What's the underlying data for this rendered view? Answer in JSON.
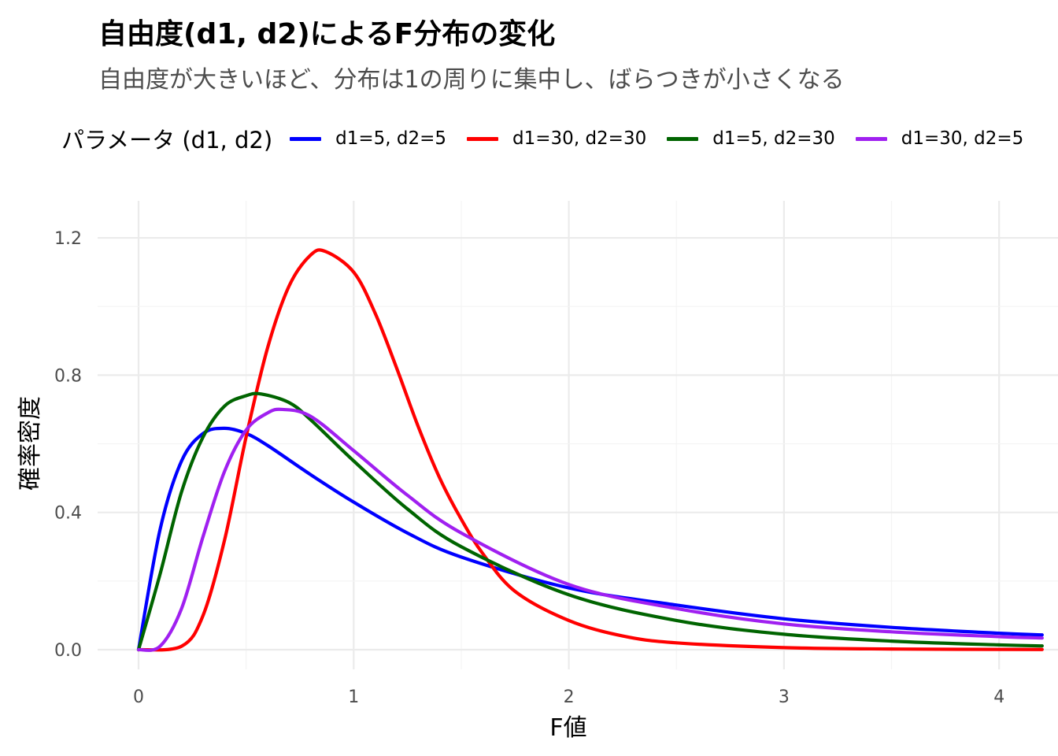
{
  "chart_data": {
    "type": "line",
    "title": "自由度(d1, d2)によるF分布の変化",
    "subtitle": "自由度が大きいほど、分布は1の周りに集中し、ばらつきが小さくなる",
    "xlabel": "F値",
    "ylabel": "確率密度",
    "xlim": [
      0,
      4.2
    ],
    "ylim": [
      0,
      1.2
    ],
    "x_ticks": [
      "0",
      "1",
      "2",
      "3",
      "4"
    ],
    "y_ticks": [
      "0.0",
      "0.4",
      "0.8",
      "1.2"
    ],
    "grid": true,
    "legend": {
      "title": "パラメータ (d1, d2)",
      "position": "top"
    },
    "series": [
      {
        "name": "d1=5, d2=5",
        "color": "#0000FF",
        "x": [
          0,
          0.1,
          0.2,
          0.3,
          0.4,
          0.5,
          0.6,
          0.8,
          1.0,
          1.25,
          1.5,
          2.0,
          2.5,
          3.0,
          3.5,
          4.0,
          4.2
        ],
        "y": [
          0,
          0.35,
          0.55,
          0.63,
          0.645,
          0.63,
          0.595,
          0.51,
          0.43,
          0.34,
          0.27,
          0.18,
          0.13,
          0.09,
          0.065,
          0.048,
          0.043
        ]
      },
      {
        "name": "d1=30, d2=30",
        "color": "#FF0000",
        "x": [
          0,
          0.2,
          0.3,
          0.4,
          0.5,
          0.6,
          0.7,
          0.8,
          0.87,
          1.0,
          1.1,
          1.2,
          1.3,
          1.4,
          1.5,
          1.6,
          1.75,
          2.0,
          2.25,
          2.5,
          3.0,
          3.5,
          4.2
        ],
        "y": [
          0,
          0.01,
          0.1,
          0.32,
          0.62,
          0.88,
          1.06,
          1.15,
          1.16,
          1.1,
          0.98,
          0.82,
          0.65,
          0.5,
          0.38,
          0.28,
          0.17,
          0.085,
          0.04,
          0.02,
          0.006,
          0.002,
          0.0005
        ]
      },
      {
        "name": "d1=5, d2=30",
        "color": "#006400",
        "x": [
          0,
          0.1,
          0.2,
          0.3,
          0.4,
          0.5,
          0.57,
          0.7,
          0.8,
          1.0,
          1.25,
          1.5,
          2.0,
          2.5,
          3.0,
          3.5,
          4.0,
          4.2
        ],
        "y": [
          0,
          0.22,
          0.46,
          0.62,
          0.71,
          0.74,
          0.745,
          0.72,
          0.67,
          0.55,
          0.41,
          0.3,
          0.16,
          0.085,
          0.045,
          0.025,
          0.014,
          0.011
        ]
      },
      {
        "name": "d1=30, d2=5",
        "color": "#A020F0",
        "x": [
          0,
          0.1,
          0.2,
          0.3,
          0.4,
          0.5,
          0.6,
          0.67,
          0.8,
          1.0,
          1.25,
          1.5,
          2.0,
          2.5,
          3.0,
          3.5,
          4.0,
          4.2
        ],
        "y": [
          0,
          0.01,
          0.12,
          0.33,
          0.52,
          0.64,
          0.69,
          0.7,
          0.68,
          0.58,
          0.45,
          0.34,
          0.19,
          0.12,
          0.075,
          0.052,
          0.038,
          0.034
        ]
      }
    ]
  }
}
